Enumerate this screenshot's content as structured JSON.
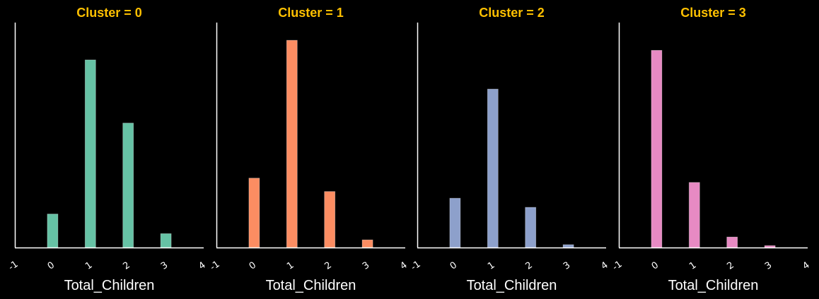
{
  "chart_data": {
    "type": "bar",
    "title_color": "#FFC000",
    "axis_color": "#FFFFFF",
    "background": "#000000",
    "x_range": [
      -1,
      4
    ],
    "y_range": [
      0,
      470
    ],
    "x_ticks": [
      "-1",
      "0",
      "1",
      "2",
      "3",
      "4"
    ],
    "xlabel": "Total_Children",
    "panels": [
      {
        "title": "Cluster = 0",
        "color": "#66C2A5",
        "bars": [
          {
            "x": 0,
            "value": 70
          },
          {
            "x": 1,
            "value": 392
          },
          {
            "x": 2,
            "value": 260
          },
          {
            "x": 3,
            "value": 29
          }
        ]
      },
      {
        "title": "Cluster = 1",
        "color": "#FC8D62",
        "bars": [
          {
            "x": 0,
            "value": 145
          },
          {
            "x": 1,
            "value": 433
          },
          {
            "x": 2,
            "value": 117
          },
          {
            "x": 3,
            "value": 16
          }
        ]
      },
      {
        "title": "Cluster = 2",
        "color": "#8DA0CB",
        "bars": [
          {
            "x": 0,
            "value": 103
          },
          {
            "x": 1,
            "value": 331
          },
          {
            "x": 2,
            "value": 84
          },
          {
            "x": 3,
            "value": 6
          }
        ]
      },
      {
        "title": "Cluster = 3",
        "color": "#E78AC3",
        "bars": [
          {
            "x": 0,
            "value": 412
          },
          {
            "x": 1,
            "value": 136
          },
          {
            "x": 2,
            "value": 22
          },
          {
            "x": 3,
            "value": 4
          }
        ]
      }
    ]
  }
}
